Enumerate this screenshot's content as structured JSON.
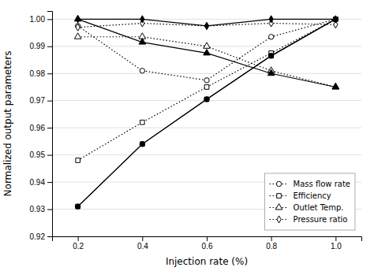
{
  "chart_data": {
    "type": "line",
    "xlabel": "Injection rate (%)",
    "ylabel": "Normalized output parameters",
    "x": [
      0.2,
      0.4,
      0.6,
      0.8,
      1.0
    ],
    "xlim": [
      0.12,
      1.08
    ],
    "xticks": [
      0.2,
      0.4,
      0.6,
      0.8,
      {
        "value": 1.0,
        "label": "1.0"
      }
    ],
    "ylim": [
      0.92,
      1.003
    ],
    "yticks": [
      0.92,
      0.93,
      0.94,
      0.95,
      0.96,
      0.97,
      0.98,
      0.99,
      {
        "value": 1.0,
        "label": "1.00"
      }
    ],
    "grid": true,
    "legend": "lower right",
    "series": [
      {
        "name": "Mass flow rate",
        "color": "#000000",
        "marker": "open-circle",
        "line_style": "dotted",
        "values": [
          0.9975,
          0.981,
          0.9775,
          0.9935,
          1.0
        ]
      },
      {
        "name": "Efficiency",
        "color": "#000000",
        "marker": "open-square",
        "line_style": "dotted",
        "values": [
          0.948,
          0.962,
          0.975,
          0.9875,
          1.0
        ]
      },
      {
        "name": "Outlet Temp.",
        "color": "#000000",
        "marker": "open-triangle",
        "line_style": "dotted",
        "values": [
          0.9935,
          0.9935,
          0.99,
          0.981,
          0.975
        ]
      },
      {
        "name": "Pressure ratio",
        "color": "#000000",
        "marker": "open-diamond",
        "line_style": "dotted",
        "values": [
          0.997,
          0.9985,
          0.9975,
          0.9985,
          0.998
        ]
      },
      {
        "color": "#000000",
        "marker": "circle",
        "line_style": "solid",
        "values": [
          0.931,
          0.954,
          0.9705,
          0.9865,
          1.0
        ]
      },
      {
        "color": "#000000",
        "marker": "square",
        "line_style": "solid",
        "values": [
          0.931,
          0.954,
          0.9705,
          0.9865,
          1.0
        ]
      },
      {
        "color": "#000000",
        "marker": "triangle",
        "line_style": "solid",
        "values": [
          1.0,
          0.9915,
          0.9875,
          0.98,
          0.975
        ]
      },
      {
        "color": "#000000",
        "marker": "diamond",
        "line_style": "solid",
        "values": [
          1.0,
          1.0,
          0.9975,
          1.0,
          1.0
        ]
      }
    ]
  }
}
